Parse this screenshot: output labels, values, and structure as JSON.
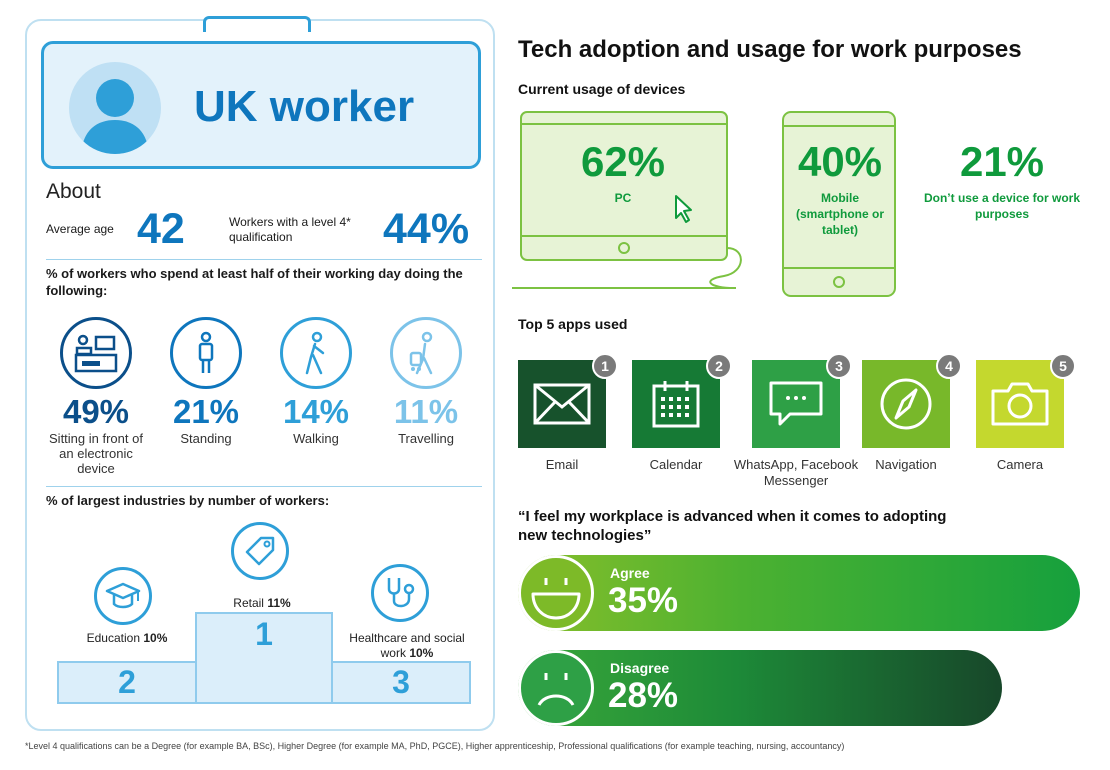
{
  "profile": {
    "title": "UK worker",
    "about_heading": "About",
    "average_age_label": "Average age",
    "average_age_value": "42",
    "qualification_label": "Workers with a level 4* qualification",
    "qualification_value": "44%"
  },
  "working_day": {
    "heading": "% of workers who spend at least half of their working day doing the following:",
    "activities": [
      {
        "icon": "desk-computer-icon",
        "percent": "49%",
        "label": "Sitting in front of an electronic device",
        "color": "#0b4f8a"
      },
      {
        "icon": "standing-person-icon",
        "percent": "21%",
        "label": "Standing",
        "color": "#0e76bd"
      },
      {
        "icon": "walking-person-icon",
        "percent": "14%",
        "label": "Walking",
        "color": "#2e9fd8"
      },
      {
        "icon": "travelling-person-icon",
        "percent": "11%",
        "label": "Travelling",
        "color": "#7cc3e9"
      }
    ]
  },
  "industries": {
    "heading": "% of  largest industries by number of workers:",
    "items": [
      {
        "icon": "price-tag-icon",
        "name": "Retail",
        "value": "11%",
        "rank": "1"
      },
      {
        "icon": "graduation-cap-icon",
        "name": "Education",
        "value": "10%",
        "rank": "2"
      },
      {
        "icon": "stethoscope-icon",
        "name": "Healthcare and social work",
        "value": "10%",
        "rank": "3"
      }
    ]
  },
  "tech": {
    "title": "Tech adoption and usage for work purposes",
    "devices_heading": "Current usage of devices",
    "devices": [
      {
        "icon": "monitor-icon",
        "percent": "62%",
        "label": "PC"
      },
      {
        "icon": "tablet-icon",
        "percent": "40%",
        "label": "Mobile (smartphone or tablet)"
      },
      {
        "icon": "none",
        "percent": "21%",
        "label": "Don’t use a device for work purposes"
      }
    ],
    "apps_heading": "Top 5 apps used",
    "apps": [
      {
        "rank": "1",
        "label": "Email",
        "icon": "envelope-icon",
        "color": "#17522c"
      },
      {
        "rank": "2",
        "label": "Calendar",
        "icon": "calendar-icon",
        "color": "#167a35"
      },
      {
        "rank": "3",
        "label": "WhatsApp, Facebook Messenger",
        "icon": "chat-bubble-icon",
        "color": "#2ea046"
      },
      {
        "rank": "4",
        "label": "Navigation",
        "icon": "compass-icon",
        "color": "#78b82a"
      },
      {
        "rank": "5",
        "label": "Camera",
        "icon": "camera-icon",
        "color": "#c4d82e"
      }
    ]
  },
  "sentiment": {
    "quote": "“I feel my workplace is advanced when it comes to adopting new technologies”",
    "agree": {
      "label": "Agree",
      "value": "35%",
      "icon": "smiley-face-icon"
    },
    "disagree": {
      "label": "Disagree",
      "value": "28%",
      "icon": "sad-face-icon"
    }
  },
  "footnote": "*Level 4 qualifications can be a Degree (for example BA, BSc), Higher Degree (for example MA, PhD, PGCE), Higher apprenticeship, Professional qualifications (for example teaching, nursing, accountancy)"
}
